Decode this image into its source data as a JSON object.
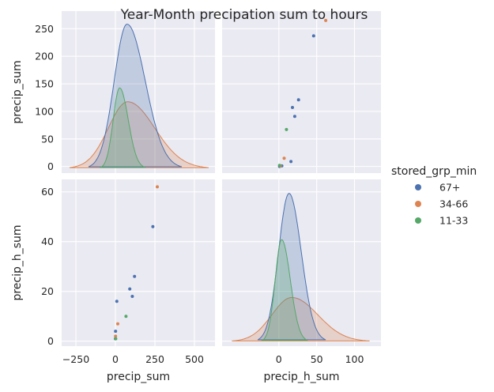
{
  "chart_data": {
    "type": "scatter",
    "title": "Year-Month precipation sum to hours",
    "variables": [
      "precip_sum",
      "precip_h_sum"
    ],
    "hue_title": "stored_grp_min",
    "legend_position": "right",
    "grid": true,
    "axes": {
      "precip_sum": {
        "label": "precip_sum",
        "lim": [
          -340,
          630
        ],
        "ticks": [
          -250,
          0,
          250,
          500
        ],
        "ticklabels": [
          "−250",
          "0",
          "250",
          "500"
        ],
        "ylim": [
          -12,
          282
        ],
        "yticks": [
          0,
          50,
          100,
          150,
          200,
          250
        ],
        "yticklabels": [
          "0",
          "50",
          "100",
          "150",
          "200",
          "250"
        ]
      },
      "precip_h_sum": {
        "label": "precip_h_sum",
        "lim": [
          -75,
          135
        ],
        "ticks": [
          0,
          50,
          100
        ],
        "ticklabels": [
          "0",
          "50",
          "100"
        ],
        "ylim": [
          -2,
          65
        ],
        "yticks": [
          0,
          20,
          40,
          60
        ],
        "yticklabels": [
          "0",
          "20",
          "40",
          "60"
        ]
      }
    },
    "series": [
      {
        "name": "67+",
        "color": "#4c72b0",
        "points": [
          {
            "precip_sum": 237,
            "precip_h_sum": 46
          },
          {
            "precip_sum": 121,
            "precip_h_sum": 26
          },
          {
            "precip_sum": 107,
            "precip_h_sum": 18
          },
          {
            "precip_sum": 91,
            "precip_h_sum": 21
          },
          {
            "precip_sum": 9,
            "precip_h_sum": 16
          },
          {
            "precip_sum": 1,
            "precip_h_sum": 4
          },
          {
            "precip_sum": 0,
            "precip_h_sum": 1
          }
        ],
        "kde_precip_sum": {
          "x_range": [
            -170,
            420
          ],
          "peak_density": 0.0052
        },
        "kde_precip_h_sum": {
          "x_range": [
            -28,
            62
          ],
          "peak_density": 0.032
        }
      },
      {
        "name": "34-66",
        "color": "#dd8452",
        "points": [
          {
            "precip_sum": 265,
            "precip_h_sum": 62
          },
          {
            "precip_sum": 15,
            "precip_h_sum": 7
          },
          {
            "precip_sum": 1,
            "precip_h_sum": 2
          }
        ],
        "kde_precip_sum": {
          "x_range": [
            -290,
            590
          ],
          "peak_density": 0.0024
        },
        "kde_precip_h_sum": {
          "x_range": [
            -62,
            120
          ],
          "peak_density": 0.0095
        }
      },
      {
        "name": "11-33",
        "color": "#55a868",
        "points": [
          {
            "precip_sum": 67,
            "precip_h_sum": 10
          },
          {
            "precip_sum": 2,
            "precip_h_sum": 1
          }
        ],
        "kde_precip_sum": {
          "x_range": [
            -95,
            190
          ],
          "peak_density": 0.0029
        },
        "kde_precip_h_sum": {
          "x_range": [
            -22,
            38
          ],
          "peak_density": 0.022
        }
      }
    ]
  }
}
